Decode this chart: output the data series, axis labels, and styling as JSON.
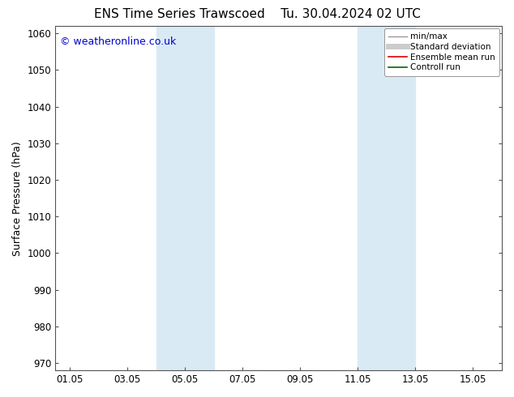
{
  "title_left": "ENS Time Series Trawscoed",
  "title_right": "Tu. 30.04.2024 02 UTC",
  "ylabel": "Surface Pressure (hPa)",
  "ylim": [
    968,
    1062
  ],
  "yticks": [
    970,
    980,
    990,
    1000,
    1010,
    1020,
    1030,
    1040,
    1050,
    1060
  ],
  "xtick_labels": [
    "01.05",
    "03.05",
    "05.05",
    "07.05",
    "09.05",
    "11.05",
    "13.05",
    "15.05"
  ],
  "xtick_days": [
    1,
    3,
    5,
    7,
    9,
    11,
    13,
    15
  ],
  "xstart_day": 0,
  "xend_day": 16,
  "shaded_bands": [
    {
      "xstart": 4,
      "xend": 6,
      "color": "#daeaf5"
    },
    {
      "xstart": 11,
      "xend": 13,
      "color": "#daeaf5"
    }
  ],
  "copyright_text": "© weatheronline.co.uk",
  "copyright_color": "#0000cc",
  "background_color": "#ffffff",
  "plot_bg_color": "#ffffff",
  "legend_items": [
    {
      "label": "min/max",
      "color": "#999999",
      "lw": 1.0,
      "linestyle": "-"
    },
    {
      "label": "Standard deviation",
      "color": "#cccccc",
      "lw": 5,
      "linestyle": "-"
    },
    {
      "label": "Ensemble mean run",
      "color": "#dd0000",
      "lw": 1.2,
      "linestyle": "-"
    },
    {
      "label": "Controll run",
      "color": "#006600",
      "lw": 1.2,
      "linestyle": "-"
    }
  ],
  "title_fontsize": 11,
  "axis_label_fontsize": 9,
  "tick_fontsize": 8.5,
  "legend_fontsize": 7.5,
  "copyright_fontsize": 9
}
